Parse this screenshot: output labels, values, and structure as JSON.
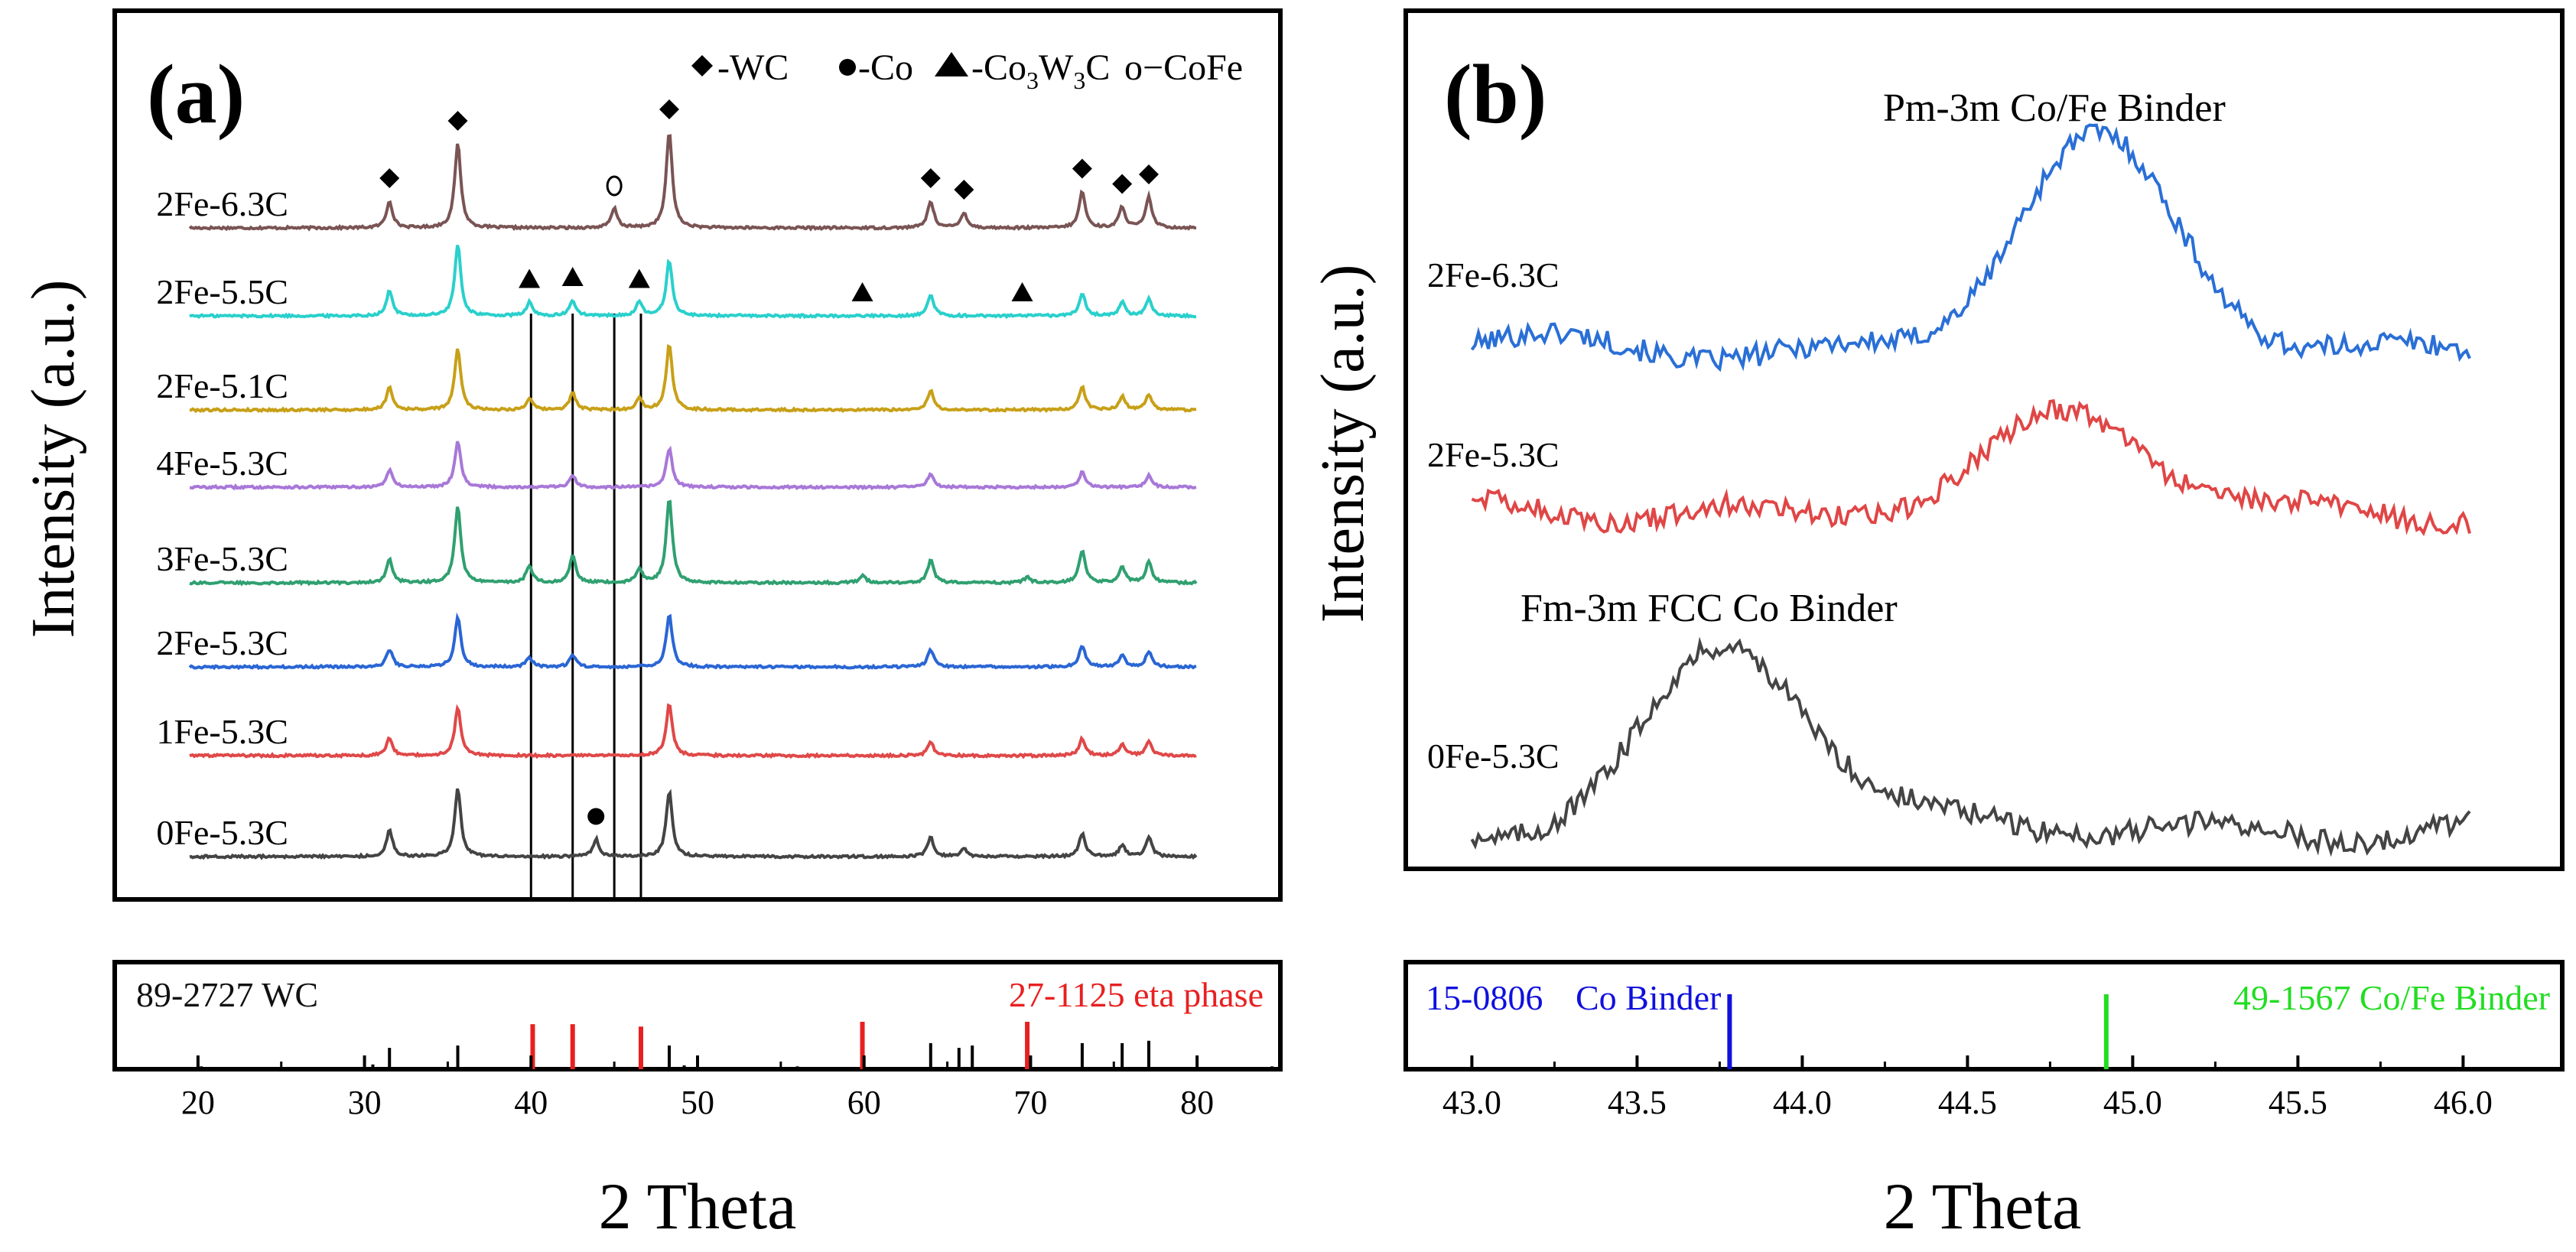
{
  "panel_a": {
    "tag": "(a)",
    "ylabel": "Intensity (a.u.)",
    "legend": [
      {
        "marker": "diamond",
        "text": "-WC"
      },
      {
        "marker": "circle",
        "text": "-Co"
      },
      {
        "marker": "triangle",
        "text": "-Co",
        "sub1": "3",
        "mid": "W",
        "sub2": "3",
        "tail": "C"
      },
      {
        "marker": "ring",
        "text": "o−CoFe"
      }
    ]
  },
  "panel_b": {
    "tag": "(b)",
    "ylabel": "Intensity (a.u.)",
    "annotations": [
      "Pm-3m Co/Fe Binder",
      "Fm-3m FCC Co Binder"
    ]
  },
  "chart_data": [
    {
      "type": "line",
      "title": "(a)",
      "xlabel": "2 Theta",
      "ylabel": "Intensity (a.u.)",
      "xlim": [
        15,
        85
      ],
      "xticks": [
        20,
        30,
        40,
        50,
        60,
        70,
        80
      ],
      "grid": false,
      "series": [
        {
          "name": "2Fe-6.3C",
          "color": "#7a5454",
          "peaks": [
            [
              31.5,
              0.7
            ],
            [
              35.6,
              2.2
            ],
            [
              45.0,
              0.5
            ],
            [
              48.3,
              2.5
            ],
            [
              64.0,
              0.7
            ],
            [
              66.0,
              0.4
            ],
            [
              73.1,
              0.95
            ],
            [
              75.5,
              0.55
            ],
            [
              77.1,
              0.8
            ]
          ]
        },
        {
          "name": "2Fe-5.5C",
          "color": "#2ad0cc",
          "peaks": [
            [
              31.5,
              0.65
            ],
            [
              35.6,
              1.85
            ],
            [
              39.9,
              0.35
            ],
            [
              42.5,
              0.4
            ],
            [
              46.5,
              0.35
            ],
            [
              48.3,
              1.45
            ],
            [
              64.0,
              0.55
            ],
            [
              73.1,
              0.6
            ],
            [
              75.5,
              0.35
            ],
            [
              77.1,
              0.45
            ]
          ]
        },
        {
          "name": "2Fe-5.1C",
          "color": "#c8a018",
          "peaks": [
            [
              31.5,
              0.6
            ],
            [
              35.6,
              1.6
            ],
            [
              39.9,
              0.3
            ],
            [
              42.5,
              0.45
            ],
            [
              46.5,
              0.3
            ],
            [
              48.3,
              1.7
            ],
            [
              64.0,
              0.5
            ],
            [
              73.1,
              0.6
            ],
            [
              75.5,
              0.35
            ],
            [
              77.1,
              0.4
            ]
          ]
        },
        {
          "name": "4Fe-5.3C",
          "color": "#a878d8",
          "peaks": [
            [
              31.5,
              0.45
            ],
            [
              35.6,
              1.2
            ],
            [
              42.5,
              0.3
            ],
            [
              48.3,
              1.0
            ],
            [
              64.0,
              0.35
            ],
            [
              73.1,
              0.4
            ],
            [
              77.1,
              0.3
            ]
          ]
        },
        {
          "name": "3Fe-5.3C",
          "color": "#30a070",
          "peaks": [
            [
              31.5,
              0.6
            ],
            [
              35.6,
              2.0
            ],
            [
              39.9,
              0.45
            ],
            [
              42.5,
              0.7
            ],
            [
              46.5,
              0.35
            ],
            [
              48.3,
              2.2
            ],
            [
              59.9,
              0.2
            ],
            [
              64.0,
              0.6
            ],
            [
              69.8,
              0.15
            ],
            [
              73.1,
              0.85
            ],
            [
              75.5,
              0.4
            ],
            [
              77.1,
              0.55
            ]
          ]
        },
        {
          "name": "2Fe-5.3C",
          "color": "#2a66d4",
          "peaks": [
            [
              31.5,
              0.45
            ],
            [
              35.6,
              1.3
            ],
            [
              39.9,
              0.25
            ],
            [
              42.5,
              0.3
            ],
            [
              48.3,
              1.35
            ],
            [
              64.0,
              0.45
            ],
            [
              73.1,
              0.55
            ],
            [
              75.5,
              0.3
            ],
            [
              77.1,
              0.4
            ]
          ]
        },
        {
          "name": "1Fe-5.3C",
          "color": "#e04848",
          "peaks": [
            [
              31.5,
              0.45
            ],
            [
              35.6,
              1.25
            ],
            [
              48.3,
              1.35
            ],
            [
              64.0,
              0.35
            ],
            [
              73.1,
              0.45
            ],
            [
              75.5,
              0.3
            ],
            [
              77.1,
              0.35
            ]
          ]
        },
        {
          "name": "0Fe-5.3C",
          "color": "#444444",
          "peaks": [
            [
              31.5,
              0.7
            ],
            [
              35.6,
              1.8
            ],
            [
              43.9,
              0.45
            ],
            [
              48.3,
              1.7
            ],
            [
              64.0,
              0.5
            ],
            [
              66.0,
              0.2
            ],
            [
              73.1,
              0.6
            ],
            [
              75.5,
              0.3
            ],
            [
              77.1,
              0.5
            ]
          ]
        }
      ],
      "markers": [
        {
          "series": "2Fe-6.3C",
          "type": "diamond",
          "x": [
            31.5,
            35.6,
            48.3,
            64.0,
            66.0,
            73.1,
            75.5,
            77.1
          ]
        },
        {
          "series": "2Fe-6.3C",
          "type": "ring",
          "x": [
            45.0
          ]
        },
        {
          "series": "2Fe-5.5C",
          "type": "triangle",
          "x": [
            39.9,
            42.5,
            46.5,
            59.9,
            69.5
          ]
        },
        {
          "series": "0Fe-5.3C",
          "type": "circle",
          "x": [
            43.9
          ]
        }
      ],
      "reference_lines_x": [
        40.0,
        42.5,
        45.0,
        46.6
      ],
      "reference_pattern": {
        "labels": [
          "89-2727 WC",
          "27-1125 eta phase"
        ],
        "wc_sticks": [
          [
            31.5,
            0.45
          ],
          [
            35.6,
            0.5
          ],
          [
            48.3,
            0.5
          ],
          [
            64.0,
            0.55
          ],
          [
            65.7,
            0.45
          ],
          [
            66.5,
            0.5
          ],
          [
            73.1,
            0.55
          ],
          [
            75.5,
            0.55
          ],
          [
            77.1,
            0.6
          ],
          [
            20.2,
            0.06
          ],
          [
            30.5,
            0.1
          ],
          [
            40.0,
            0.08
          ],
          [
            49.2,
            0.08
          ],
          [
            56.0,
            0.06
          ],
          [
            84.5,
            0.06
          ]
        ],
        "eta_sticks": [
          [
            40.1,
            0.95
          ],
          [
            42.5,
            0.95
          ],
          [
            46.6,
            0.9
          ],
          [
            59.9,
            1.0
          ],
          [
            69.8,
            1.0
          ]
        ]
      }
    },
    {
      "type": "line",
      "title": "(b)",
      "xlabel": "2 Theta",
      "ylabel": "Intensity (a.u.)",
      "xlim": [
        42.8,
        46.3
      ],
      "xticks": [
        43.0,
        43.5,
        44.0,
        44.5,
        45.0,
        45.5,
        46.0
      ],
      "grid": false,
      "series": [
        {
          "name": "2Fe-6.3C",
          "color": "#2a6fd6",
          "peak_center": 44.88,
          "peak_height": 1.0
        },
        {
          "name": "2Fe-5.3C",
          "color": "#e04646",
          "peak_center": 44.82,
          "peak_height": 0.42
        },
        {
          "name": "0Fe-5.3C",
          "color": "#444444",
          "peak_center": 43.78,
          "peak_height": 0.92
        }
      ],
      "reference_pattern": {
        "labels": [
          "15-0806",
          "Co Binder",
          "49-1567 Co/Fe Binder"
        ],
        "sticks": [
          {
            "name": "Co Binder",
            "x": 43.78,
            "color": "#1010dd"
          },
          {
            "name": "Co/Fe Binder",
            "x": 44.92,
            "color": "#22dd22"
          }
        ]
      }
    }
  ]
}
